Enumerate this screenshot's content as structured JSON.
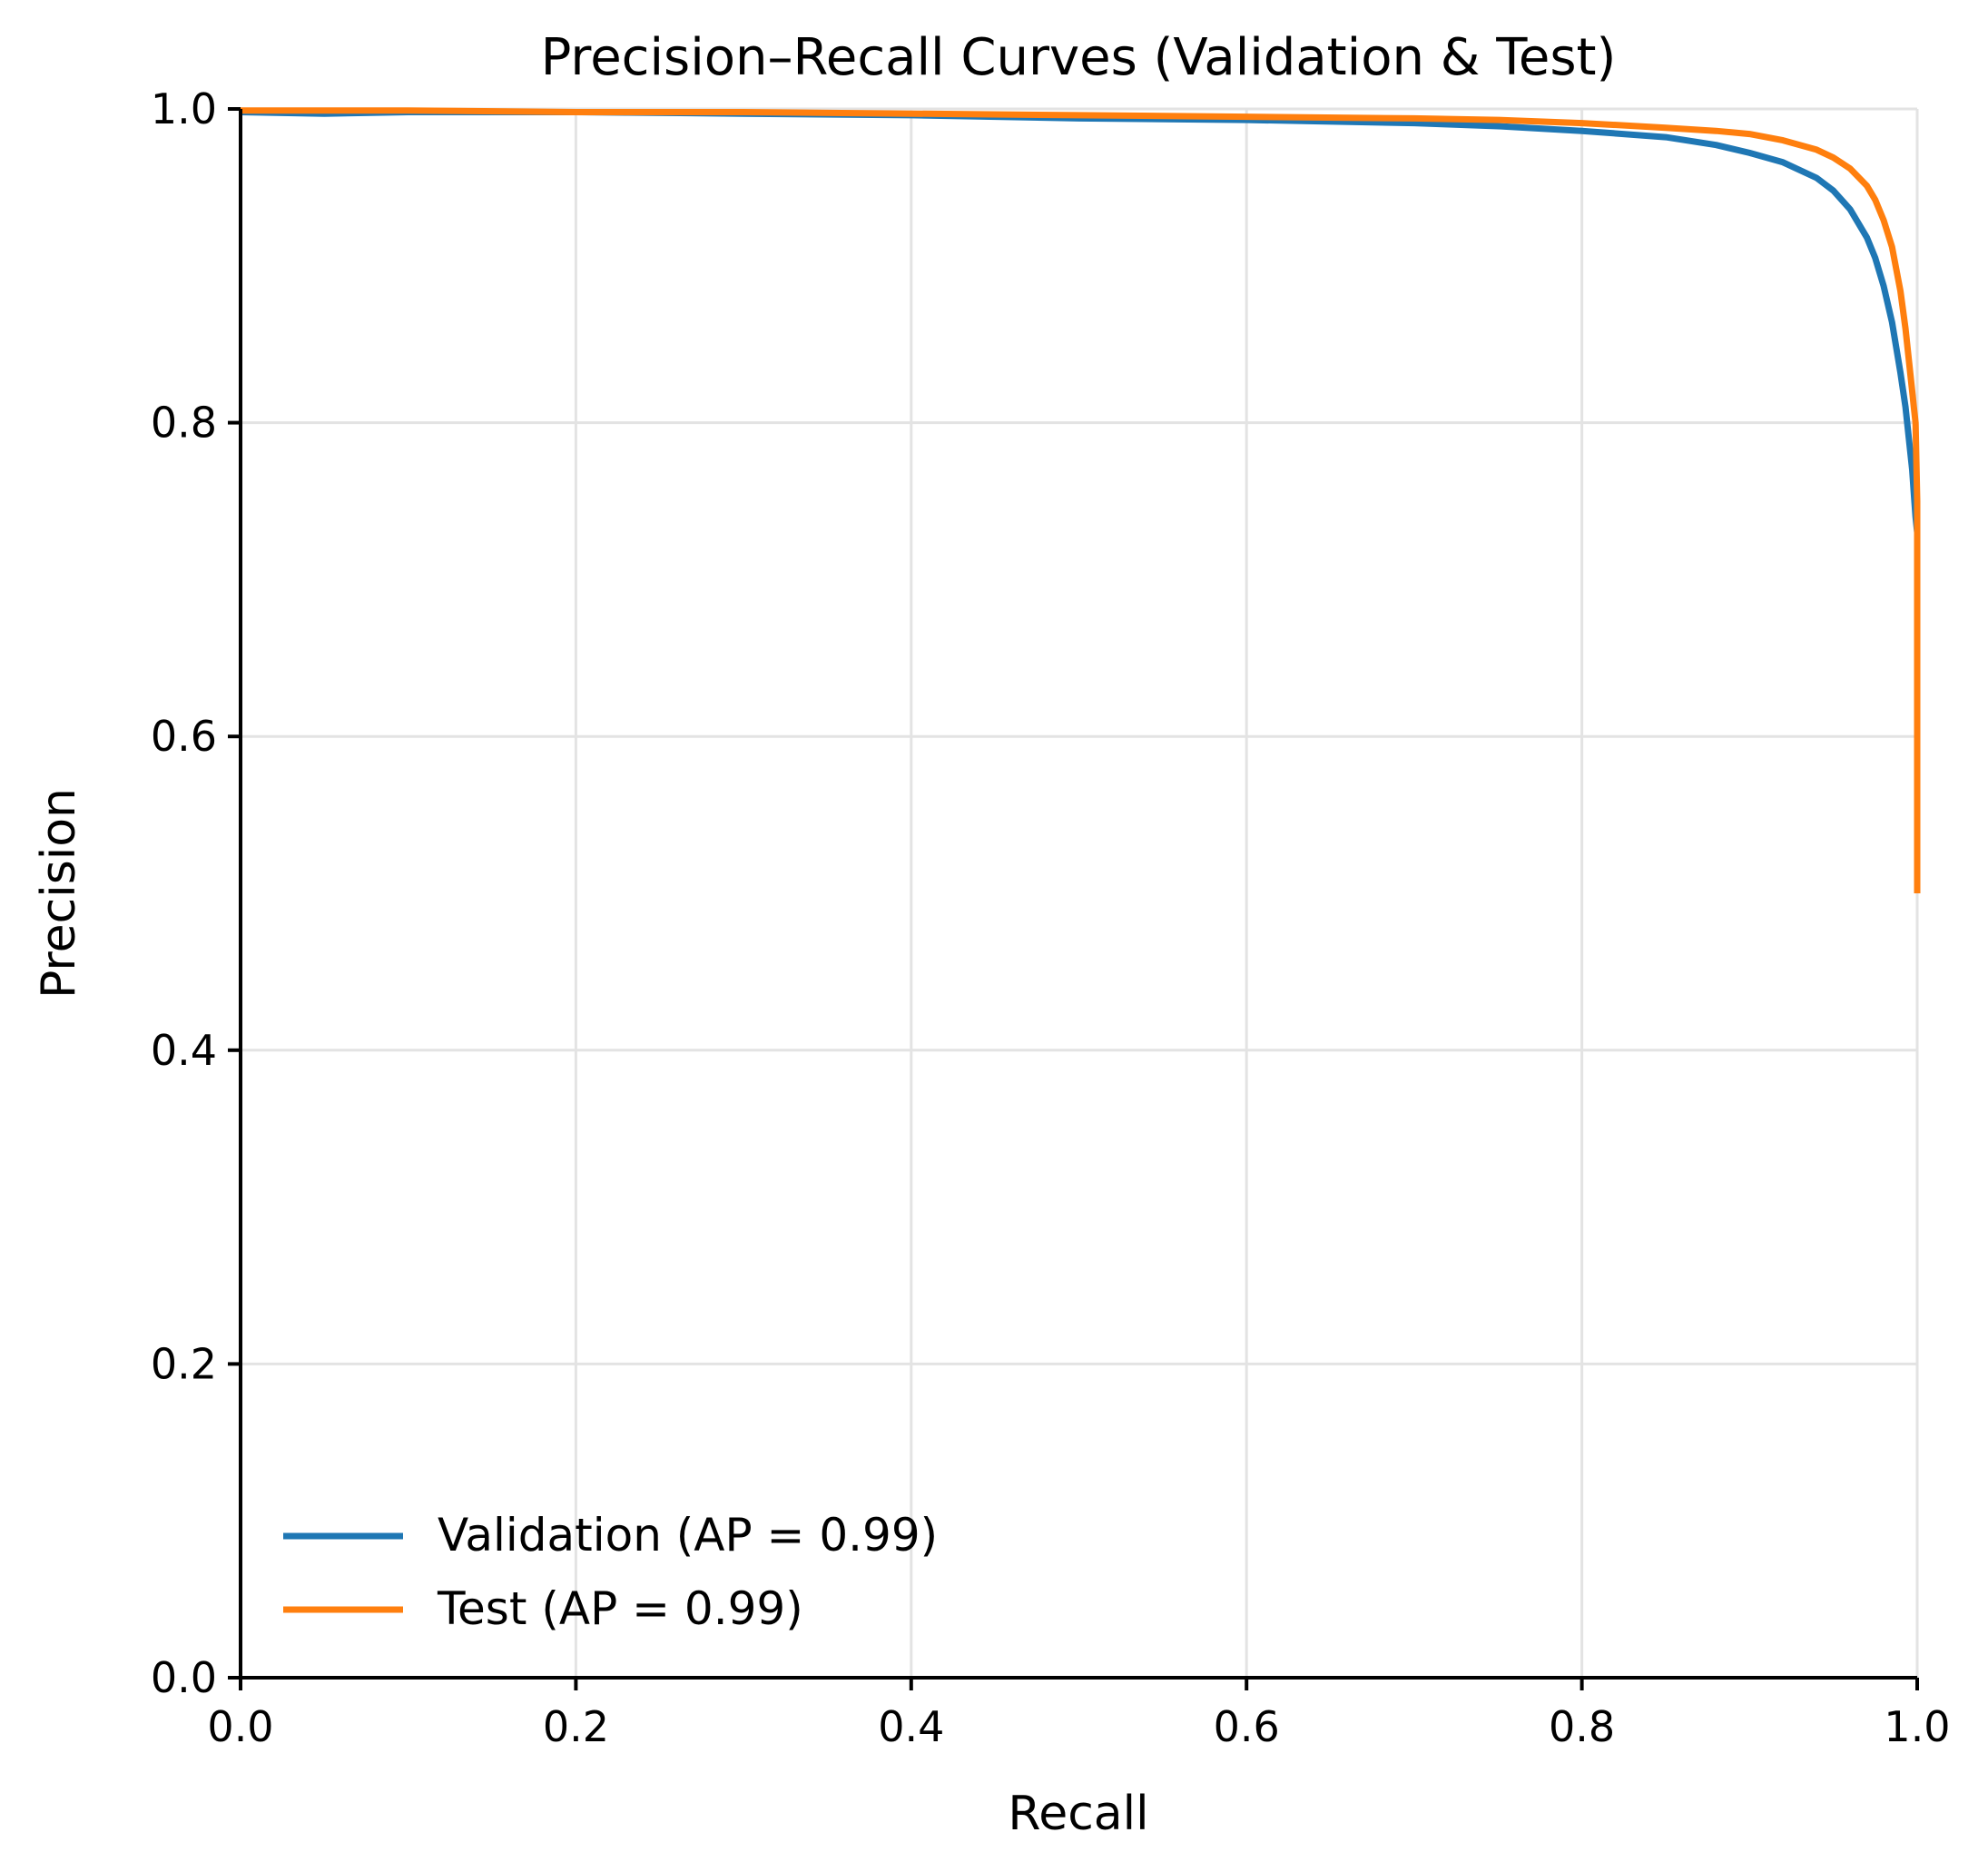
{
  "chart_data": {
    "type": "line",
    "title": "Precision–Recall Curves (Validation & Test)",
    "xlabel": "Recall",
    "ylabel": "Precision",
    "xlim": [
      0,
      1
    ],
    "ylim": [
      0,
      1
    ],
    "xticks": [
      0.0,
      0.2,
      0.4,
      0.6,
      0.8,
      1.0
    ],
    "yticks": [
      0.0,
      0.2,
      0.4,
      0.6,
      0.8,
      1.0
    ],
    "xtick_labels": [
      "0.0",
      "0.2",
      "0.4",
      "0.6",
      "0.8",
      "1.0"
    ],
    "ytick_labels": [
      "0.0",
      "0.2",
      "0.4",
      "0.6",
      "0.8",
      "1.0"
    ],
    "grid": true,
    "legend_position": "lower-left",
    "series": [
      {
        "name": "Validation (AP = 0.99)",
        "color": "#1f77b4",
        "x": [
          0.0,
          0.05,
          0.1,
          0.2,
          0.3,
          0.4,
          0.5,
          0.6,
          0.7,
          0.75,
          0.8,
          0.85,
          0.88,
          0.9,
          0.92,
          0.94,
          0.95,
          0.96,
          0.97,
          0.975,
          0.98,
          0.985,
          0.99,
          0.993,
          0.995,
          0.997,
          0.998,
          0.999,
          1.0,
          1.0
        ],
        "y": [
          0.998,
          0.997,
          0.998,
          0.998,
          0.997,
          0.996,
          0.994,
          0.993,
          0.991,
          0.989,
          0.986,
          0.982,
          0.977,
          0.972,
          0.966,
          0.956,
          0.948,
          0.936,
          0.918,
          0.905,
          0.887,
          0.864,
          0.832,
          0.81,
          0.79,
          0.77,
          0.755,
          0.74,
          0.73,
          0.72
        ]
      },
      {
        "name": "Test (AP = 0.99)",
        "color": "#ff7f0e",
        "x": [
          0.0,
          0.05,
          0.1,
          0.2,
          0.3,
          0.4,
          0.5,
          0.6,
          0.7,
          0.75,
          0.8,
          0.85,
          0.88,
          0.9,
          0.92,
          0.94,
          0.95,
          0.96,
          0.97,
          0.975,
          0.98,
          0.985,
          0.99,
          0.993,
          0.995,
          0.997,
          0.998,
          0.999,
          1.0,
          1.0,
          1.0,
          1.0
        ],
        "y": [
          0.999,
          0.999,
          0.999,
          0.998,
          0.998,
          0.997,
          0.996,
          0.995,
          0.994,
          0.993,
          0.991,
          0.988,
          0.986,
          0.984,
          0.98,
          0.974,
          0.969,
          0.962,
          0.951,
          0.942,
          0.929,
          0.912,
          0.884,
          0.86,
          0.84,
          0.82,
          0.81,
          0.8,
          0.75,
          0.65,
          0.55,
          0.5
        ]
      }
    ]
  }
}
